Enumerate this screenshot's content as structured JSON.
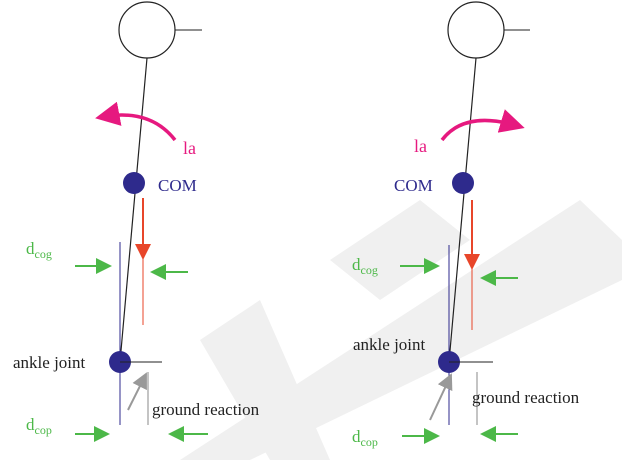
{
  "left": {
    "torque": "la",
    "com": "COM",
    "dcog": {
      "base": "d",
      "sub": "cog"
    },
    "ankle": "ankle joint",
    "ground": "ground reaction",
    "dcop": {
      "base": "d",
      "sub": "cop"
    }
  },
  "right": {
    "torque": "la",
    "com": "COM",
    "dcog": {
      "base": "d",
      "sub": "cog"
    },
    "ankle": "ankle joint",
    "ground": "ground reaction",
    "dcop": {
      "base": "d",
      "sub": "cop"
    }
  }
}
